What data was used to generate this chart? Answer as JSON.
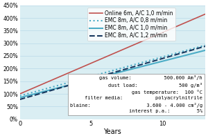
{
  "title": "",
  "xlabel": "Years",
  "ylabel": "",
  "xlim": [
    0,
    13
  ],
  "ylim": [
    0.0,
    4.5
  ],
  "yticks": [
    0.0,
    0.5,
    1.0,
    1.5,
    2.0,
    2.5,
    3.0,
    3.5,
    4.0,
    4.5
  ],
  "ytick_labels": [
    "0%",
    "50%",
    "100%",
    "150%",
    "200%",
    "250%",
    "300%",
    "350%",
    "400%",
    "450%"
  ],
  "xticks": [
    0,
    5,
    10
  ],
  "background_color": "#daeef3",
  "grid_color": "#b8d9e8",
  "lines": [
    {
      "label": "Online 6m, A/C 1,0 m/min",
      "color": "#c0504d",
      "linestyle": "-",
      "linewidth": 1.2,
      "start_y": 1.0,
      "end_y": 4.15
    },
    {
      "label": "EMC 8m, A/C 0,8 m/min",
      "color": "#4bacc6",
      "linestyle": ":",
      "linewidth": 1.5,
      "start_y": 0.92,
      "end_y": 2.92
    },
    {
      "label": "EMC 8m, A/C 1,0 m/min",
      "color": "#4bacc6",
      "linestyle": "-",
      "linewidth": 1.5,
      "start_y": 0.85,
      "end_y": 2.72
    },
    {
      "label": "EMC 8m, A/C 1,2 m/min",
      "color": "#17375e",
      "linestyle": "--",
      "linewidth": 1.5,
      "start_y": 0.78,
      "end_y": 2.88
    }
  ],
  "infobox": {
    "text_left": "gas volume:\ndust load:\ngas temperature:\nfilter media:\nblaine:\ninterest p.a.:",
    "text_right": "500.000 Am³/h\n500 g/m³\n100 °C\npolyacrylnitrile\n3.600 - 4.000 cm²/g\n5%",
    "fontsize": 5.0,
    "bg_color": "#ffffff",
    "edge_color": "#888888"
  },
  "legend": {
    "fontsize": 5.5,
    "frameon": true
  }
}
